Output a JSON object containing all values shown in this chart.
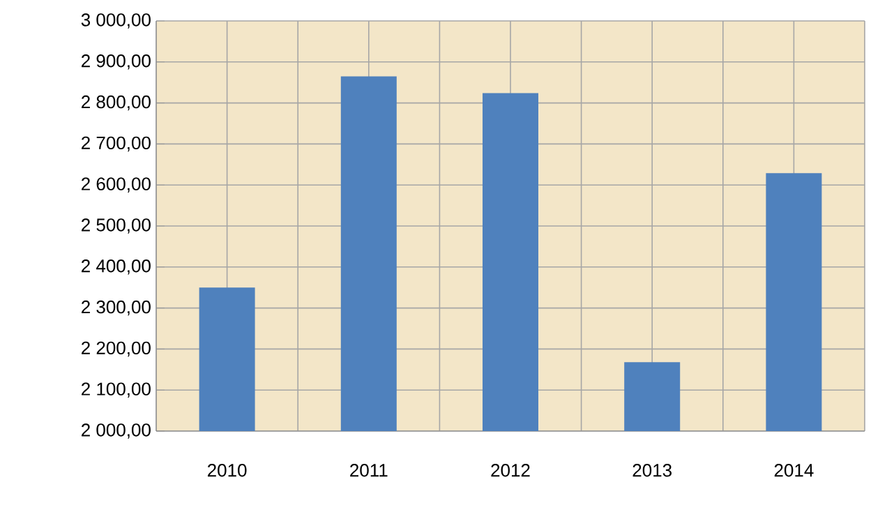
{
  "chart_data": {
    "type": "bar",
    "categories": [
      "2010",
      "2011",
      "2012",
      "2013",
      "2014"
    ],
    "values": [
      2350,
      2865,
      2824,
      2168,
      2629
    ],
    "color": "#4f81bd",
    "ylim": [
      2000,
      3000
    ],
    "yticks": [
      {
        "value": 2000,
        "label": "2 000,00"
      },
      {
        "value": 2100,
        "label": "2 100,00"
      },
      {
        "value": 2200,
        "label": "2 200,00"
      },
      {
        "value": 2300,
        "label": "2 300,00"
      },
      {
        "value": 2400,
        "label": "2 400,00"
      },
      {
        "value": 2500,
        "label": "2 500,00"
      },
      {
        "value": 2600,
        "label": "2 600,00"
      },
      {
        "value": 2700,
        "label": "2 700,00"
      },
      {
        "value": 2800,
        "label": "2 800,00"
      },
      {
        "value": 2900,
        "label": "2 900,00"
      },
      {
        "value": 3000,
        "label": "3 000,00"
      }
    ],
    "grid": true
  }
}
